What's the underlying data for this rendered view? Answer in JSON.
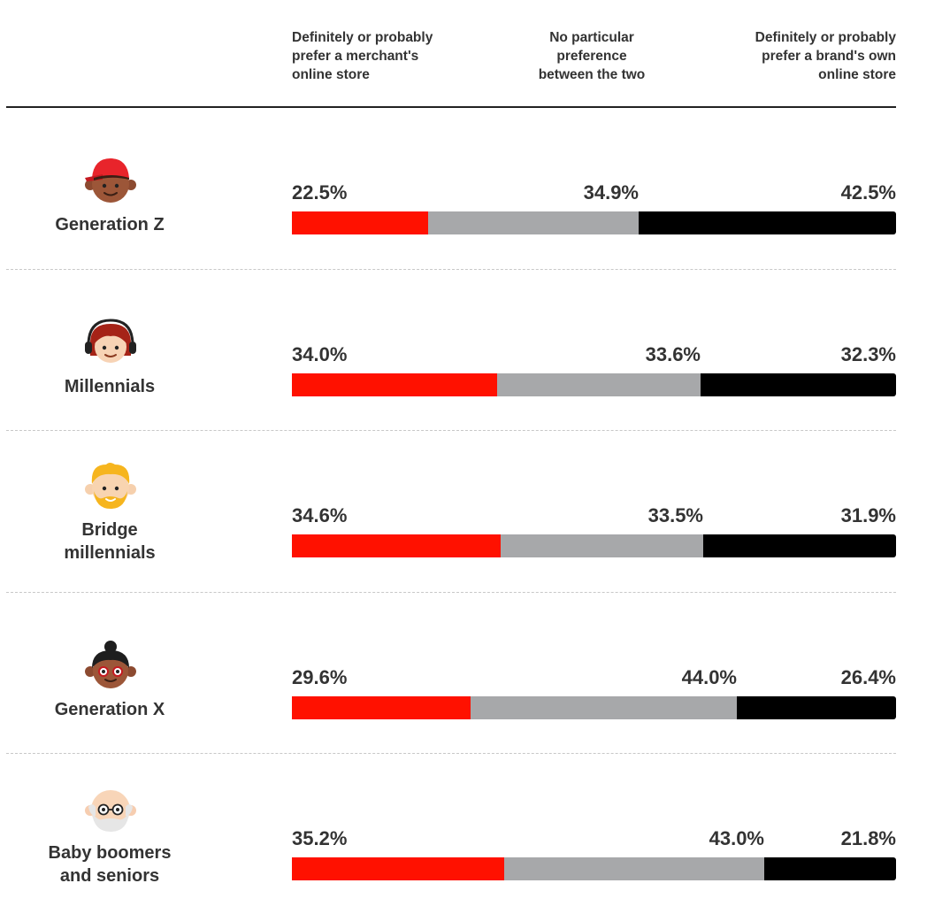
{
  "chart_data": {
    "type": "bar",
    "stacked": true,
    "orientation": "horizontal",
    "legend": [
      "Definitely or probably prefer a merchant's online store",
      "No particular preference between the two",
      "Definitely or probably prefer a brand's own online store"
    ],
    "header_lines": [
      [
        "Definitely or probably",
        "prefer a merchant's",
        "online store"
      ],
      [
        "No particular",
        "preference",
        "between the two"
      ],
      [
        "Definitely or probably",
        "prefer a brand's own",
        "online store"
      ]
    ],
    "colors": [
      "#ff1100",
      "#a7a8aa",
      "#000000"
    ],
    "categories": [
      {
        "label_lines": [
          "Generation Z"
        ],
        "icon": "generation-z-icon",
        "values": [
          22.5,
          34.9,
          42.5
        ],
        "labels": [
          "22.5%",
          "34.9%",
          "42.5%"
        ]
      },
      {
        "label_lines": [
          "Millennials"
        ],
        "icon": "millennials-icon",
        "values": [
          34.0,
          33.6,
          32.3
        ],
        "labels": [
          "34.0%",
          "33.6%",
          "32.3%"
        ]
      },
      {
        "label_lines": [
          "Bridge",
          "millennials"
        ],
        "icon": "bridge-millennials-icon",
        "values": [
          34.6,
          33.5,
          31.9
        ],
        "labels": [
          "34.6%",
          "33.5%",
          "31.9%"
        ]
      },
      {
        "label_lines": [
          "Generation X"
        ],
        "icon": "generation-x-icon",
        "values": [
          29.6,
          44.0,
          26.4
        ],
        "labels": [
          "29.6%",
          "44.0%",
          "26.4%"
        ]
      },
      {
        "label_lines": [
          "Baby boomers",
          "and seniors"
        ],
        "icon": "baby-boomers-icon",
        "values": [
          35.2,
          43.0,
          21.8
        ],
        "labels": [
          "35.2%",
          "43.0%",
          "21.8%"
        ]
      }
    ]
  }
}
